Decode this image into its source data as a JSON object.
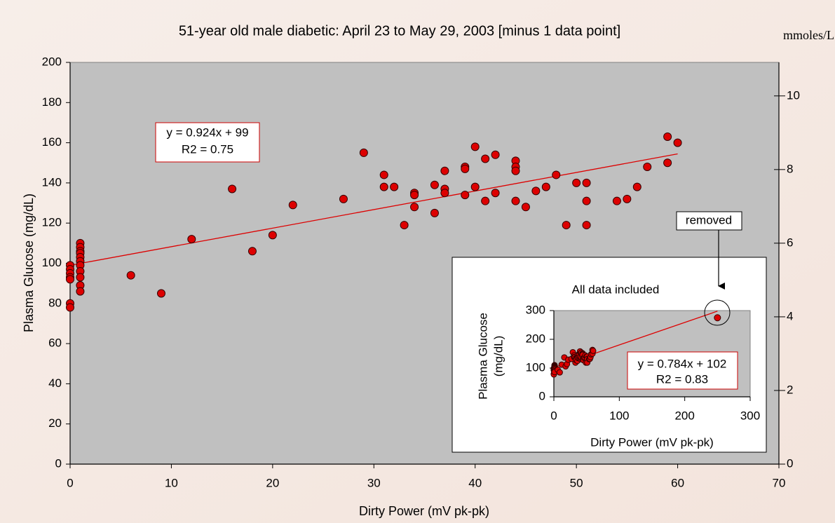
{
  "chart_data": [
    {
      "type": "scatter",
      "title": "51-year old male diabetic:  April 23 to May 29, 2003 [minus 1 data point]",
      "x_label": "Dirty Power (mV pk-pk)",
      "y_label": "Plasma Glucose (mg/dL)",
      "y2_label": "mmoles/L",
      "color": "#dd0000",
      "x": [
        0,
        0,
        0,
        0,
        0,
        0,
        0,
        1,
        1,
        1,
        1,
        1,
        1,
        1,
        1,
        1,
        1,
        1,
        6,
        9,
        12,
        16,
        18,
        20,
        22,
        27,
        29,
        31,
        31,
        32,
        33,
        34,
        34,
        34,
        36,
        36,
        37,
        37,
        37,
        39,
        39,
        39,
        40,
        40,
        41,
        41,
        42,
        42,
        44,
        44,
        44,
        44,
        45,
        46,
        47,
        48,
        49,
        50,
        51,
        51,
        51,
        54,
        55,
        56,
        57,
        59,
        59,
        60
      ],
      "values": [
        99,
        97,
        95,
        93,
        92,
        80,
        78,
        110,
        108,
        106,
        105,
        103,
        101,
        99,
        96,
        93,
        89,
        86,
        94,
        85,
        112,
        137,
        106,
        114,
        129,
        132,
        155,
        144,
        138,
        138,
        119,
        135,
        134,
        128,
        139,
        125,
        146,
        137,
        135,
        148,
        147,
        134,
        158,
        138,
        152,
        131,
        154,
        135,
        151,
        148,
        146,
        131,
        128,
        136,
        138,
        144,
        119,
        140,
        140,
        131,
        119,
        131,
        132,
        138,
        148,
        163,
        150,
        160
      ],
      "xlim": [
        0,
        70
      ],
      "xticks": [
        0,
        10,
        20,
        30,
        40,
        50,
        60,
        70
      ],
      "ylim": [
        0,
        200
      ],
      "yticks": [
        0,
        20,
        40,
        60,
        80,
        100,
        120,
        140,
        160,
        180,
        200
      ],
      "y2lim": [
        0,
        10.91
      ],
      "y2ticks": [
        0,
        2,
        4,
        6,
        8,
        10
      ],
      "trendline": {
        "slope": 0.924,
        "intercept": 99,
        "equation": "y = 0.924x + 99",
        "r2": "R2 = 0.75"
      }
    },
    {
      "type": "scatter",
      "title": "All data included",
      "x_label": "Dirty Power (mV pk-pk)",
      "y_label": [
        "Plasma Glucose",
        "(mg/dL)"
      ],
      "annotation": "removed",
      "x": [
        250
      ],
      "values": [
        275
      ],
      "xlim": [
        0,
        300
      ],
      "xticks": [
        0,
        100,
        200,
        300
      ],
      "ylim": [
        0,
        300
      ],
      "yticks": [
        0,
        100,
        200,
        300
      ],
      "trendline": {
        "slope": 0.784,
        "intercept": 102,
        "equation": "y = 0.784x + 102",
        "r2": "R2 = 0.83"
      }
    }
  ]
}
